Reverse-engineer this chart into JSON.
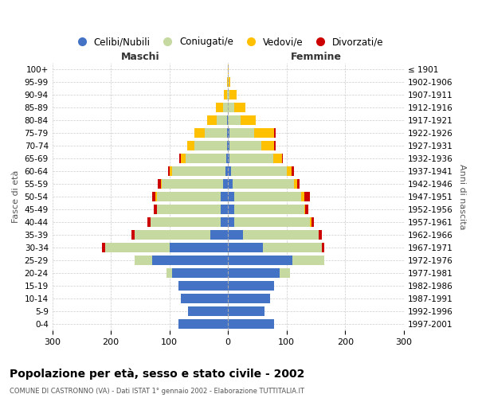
{
  "age_groups": [
    "0-4",
    "5-9",
    "10-14",
    "15-19",
    "20-24",
    "25-29",
    "30-34",
    "35-39",
    "40-44",
    "45-49",
    "50-54",
    "55-59",
    "60-64",
    "65-69",
    "70-74",
    "75-79",
    "80-84",
    "85-89",
    "90-94",
    "95-99",
    "100+"
  ],
  "birth_years": [
    "1997-2001",
    "1992-1996",
    "1987-1991",
    "1982-1986",
    "1977-1981",
    "1972-1976",
    "1967-1971",
    "1962-1966",
    "1957-1961",
    "1952-1956",
    "1947-1951",
    "1942-1946",
    "1937-1941",
    "1932-1936",
    "1927-1931",
    "1922-1926",
    "1917-1921",
    "1912-1916",
    "1907-1911",
    "1902-1906",
    "≤ 1901"
  ],
  "male_celibe": [
    85,
    68,
    80,
    85,
    95,
    130,
    100,
    30,
    12,
    12,
    12,
    8,
    5,
    3,
    2,
    2,
    1,
    0,
    0,
    0,
    0
  ],
  "male_coniugato": [
    0,
    0,
    0,
    0,
    10,
    30,
    110,
    130,
    120,
    110,
    110,
    105,
    90,
    70,
    55,
    38,
    18,
    8,
    2,
    0,
    0
  ],
  "male_vedovo": [
    0,
    0,
    0,
    0,
    0,
    0,
    0,
    0,
    0,
    0,
    2,
    2,
    4,
    8,
    12,
    18,
    16,
    12,
    5,
    1,
    0
  ],
  "male_divorziato": [
    0,
    0,
    0,
    0,
    0,
    0,
    5,
    5,
    5,
    5,
    5,
    5,
    3,
    2,
    1,
    0,
    0,
    0,
    0,
    0,
    0
  ],
  "female_celibe": [
    78,
    62,
    72,
    78,
    88,
    110,
    60,
    25,
    10,
    10,
    10,
    8,
    5,
    2,
    2,
    2,
    0,
    0,
    0,
    0,
    0
  ],
  "female_coniugato": [
    0,
    0,
    0,
    0,
    18,
    55,
    100,
    130,
    130,
    120,
    115,
    105,
    95,
    75,
    55,
    42,
    22,
    10,
    3,
    1,
    0
  ],
  "female_vedovo": [
    0,
    0,
    0,
    0,
    0,
    0,
    0,
    0,
    2,
    2,
    5,
    5,
    8,
    15,
    22,
    35,
    25,
    20,
    12,
    3,
    1
  ],
  "female_divorziato": [
    0,
    0,
    0,
    0,
    0,
    0,
    5,
    5,
    5,
    5,
    10,
    4,
    4,
    2,
    2,
    2,
    0,
    0,
    0,
    0,
    0
  ],
  "color_celibe": "#4472c4",
  "color_coniugato": "#c5d9a0",
  "color_vedovo": "#ffc000",
  "color_divorziato": "#cc0000",
  "xlim": 300,
  "title": "Popolazione per età, sesso e stato civile - 2002",
  "subtitle": "COMUNE DI CASTRONNO (VA) - Dati ISTAT 1° gennaio 2002 - Elaborazione TUTTITALIA.IT",
  "ylabel_left": "Fasce di età",
  "ylabel_right": "Anni di nascita",
  "xlabel_left": "Maschi",
  "xlabel_right": "Femmine",
  "legend_labels": [
    "Celibi/Nubili",
    "Coniugati/e",
    "Vedovi/e",
    "Divorzati/e"
  ],
  "bg_color": "#ffffff",
  "grid_color": "#cccccc"
}
